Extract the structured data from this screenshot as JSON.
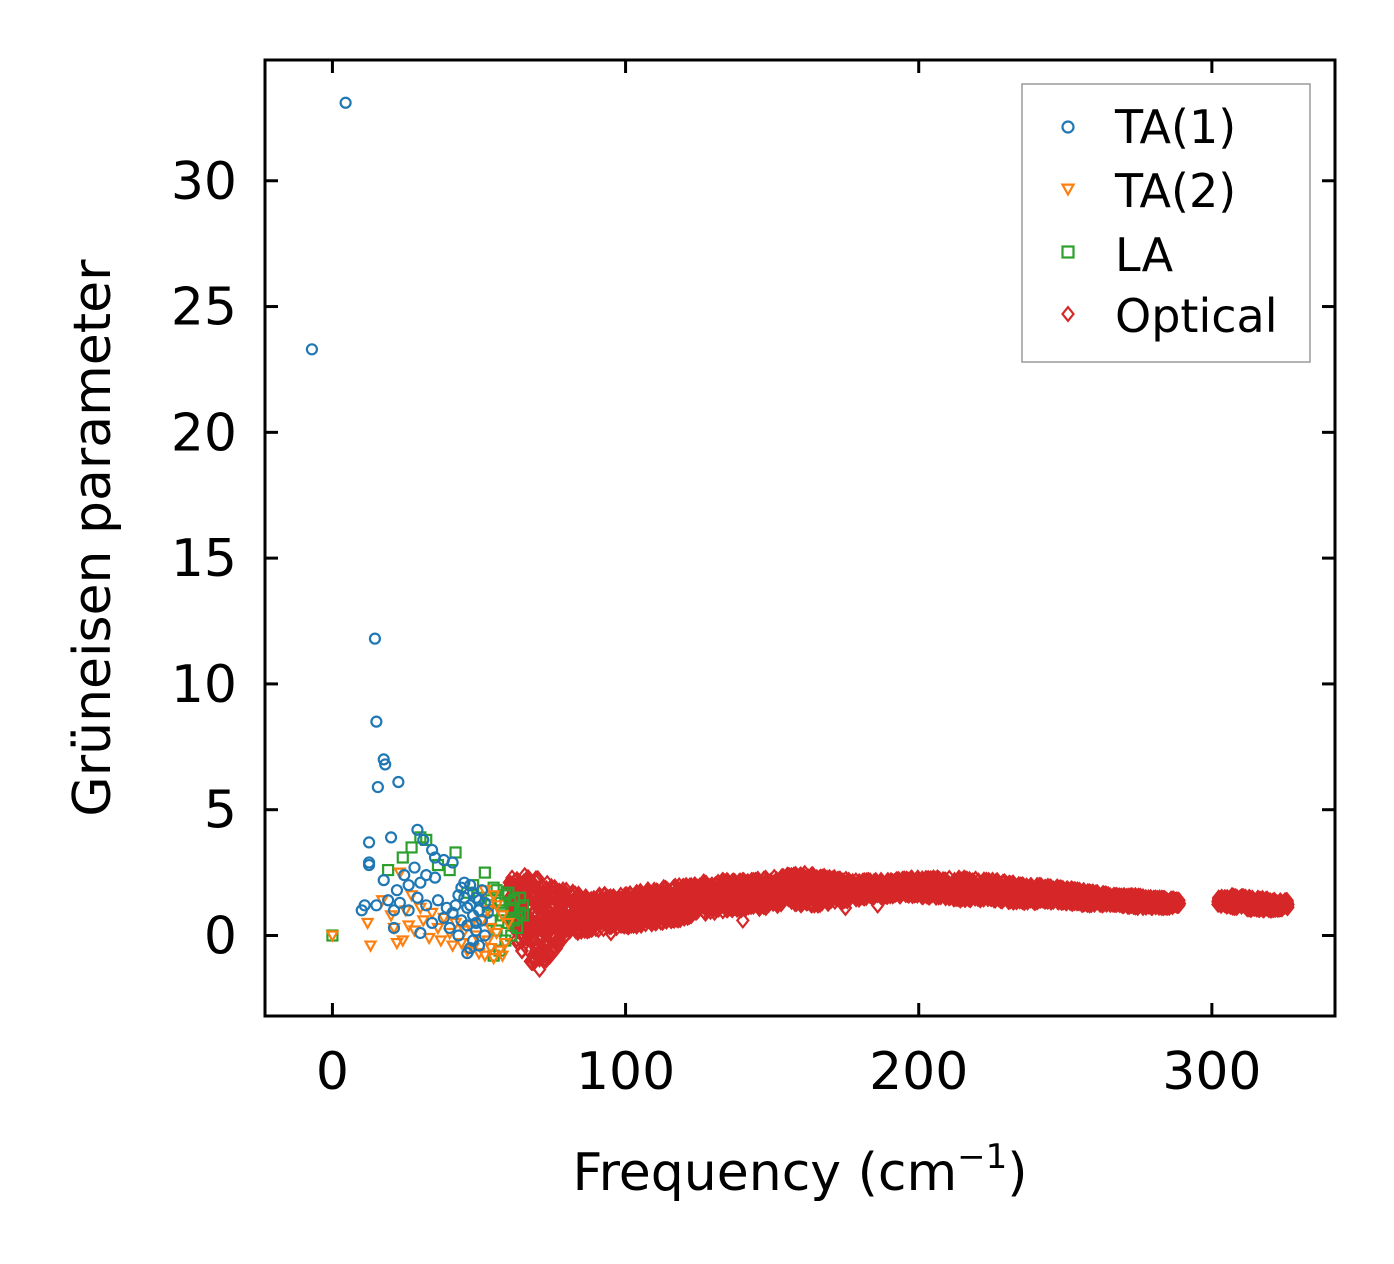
{
  "chart_data": {
    "type": "scatter",
    "title": "",
    "xlabel": "Frequency (cm−1)",
    "xlabel_main": "Frequency (cm",
    "xlabel_sup": "−1",
    "xlabel_close": ")",
    "ylabel": "Grüneisen parameter",
    "xlim": [
      -23,
      342
    ],
    "ylim": [
      -3.2,
      34.8
    ],
    "xticks": [
      0,
      100,
      200,
      300
    ],
    "yticks": [
      0,
      5,
      10,
      15,
      20,
      25,
      30
    ],
    "xtick_labels": [
      "0",
      "100",
      "200",
      "300"
    ],
    "ytick_labels": [
      "0",
      "5",
      "10",
      "15",
      "20",
      "25",
      "30"
    ],
    "legend_position": "top-right",
    "grid": false,
    "series": [
      {
        "name": "TA(1)",
        "marker": "circle",
        "color": "#1f77b4",
        "points": [
          [
            -7,
            23.3
          ],
          [
            4.5,
            33.1
          ],
          [
            14.5,
            11.8
          ],
          [
            15,
            8.5
          ],
          [
            17.5,
            7.0
          ],
          [
            18,
            6.8
          ],
          [
            15.5,
            5.9
          ],
          [
            22.5,
            6.1
          ],
          [
            20,
            3.9
          ],
          [
            12.5,
            3.7
          ],
          [
            12.5,
            2.9
          ],
          [
            12.5,
            2.8
          ],
          [
            29,
            4.2
          ],
          [
            31,
            3.8
          ],
          [
            34,
            3.4
          ],
          [
            35,
            3.1
          ],
          [
            38,
            3.0
          ],
          [
            41,
            2.9
          ],
          [
            17.5,
            2.2
          ],
          [
            24.5,
            2.4
          ],
          [
            28,
            2.7
          ],
          [
            32,
            2.4
          ],
          [
            22,
            1.8
          ],
          [
            26,
            2.0
          ],
          [
            30,
            2.1
          ],
          [
            35,
            2.3
          ],
          [
            10,
            1.0
          ],
          [
            11,
            1.2
          ],
          [
            15,
            1.2
          ],
          [
            19,
            1.4
          ],
          [
            21,
            1.0
          ],
          [
            23,
            1.3
          ],
          [
            26,
            1.0
          ],
          [
            29,
            1.5
          ],
          [
            32,
            1.2
          ],
          [
            36,
            1.4
          ],
          [
            39,
            1.1
          ],
          [
            21,
            0.3
          ],
          [
            30,
            0.1
          ],
          [
            34,
            0.5
          ],
          [
            38,
            0.7
          ],
          [
            41,
            0.9
          ],
          [
            43,
            1.6
          ],
          [
            44,
            1.9
          ],
          [
            45,
            2.1
          ],
          [
            46,
            0.4
          ],
          [
            47,
            1.2
          ],
          [
            48,
            0.8
          ],
          [
            49,
            1.5
          ],
          [
            50,
            1.0
          ],
          [
            51,
            0.6
          ],
          [
            52,
            1.3
          ],
          [
            47,
            -0.5
          ],
          [
            48,
            -0.2
          ],
          [
            46,
            -0.7
          ],
          [
            49,
            0.2
          ],
          [
            50,
            -0.4
          ],
          [
            51,
            1.8
          ],
          [
            52,
            0.0
          ],
          [
            53,
            0.9
          ],
          [
            44,
            0.6
          ],
          [
            42,
            1.2
          ],
          [
            40,
            0.3
          ],
          [
            45,
            1.5
          ],
          [
            47,
            2.0
          ],
          [
            43,
            0.0
          ],
          [
            48,
            1.7
          ],
          [
            50,
            1.4
          ],
          [
            46,
            1.1
          ],
          [
            49,
            0.5
          ]
        ]
      },
      {
        "name": "TA(2)",
        "marker": "triangle-down",
        "color": "#ff7f0e",
        "points": [
          [
            0,
            0.0
          ],
          [
            12,
            0.5
          ],
          [
            13,
            -0.4
          ],
          [
            17,
            1.4
          ],
          [
            20,
            0.8
          ],
          [
            21,
            0.3
          ],
          [
            22,
            -0.3
          ],
          [
            23,
            2.5
          ],
          [
            24,
            -0.2
          ],
          [
            25,
            1.0
          ],
          [
            26,
            0.4
          ],
          [
            27,
            1.6
          ],
          [
            28,
            0.2
          ],
          [
            30,
            1.1
          ],
          [
            31,
            0.6
          ],
          [
            33,
            -0.1
          ],
          [
            34,
            0.9
          ],
          [
            36,
            0.3
          ],
          [
            37,
            -0.2
          ],
          [
            38,
            0.7
          ],
          [
            40,
            0.1
          ],
          [
            41,
            -0.4
          ],
          [
            42,
            0.5
          ],
          [
            44,
            -0.3
          ],
          [
            45,
            0.2
          ],
          [
            46,
            -0.6
          ],
          [
            47,
            0.4
          ],
          [
            48,
            -0.5
          ],
          [
            49,
            0.0
          ],
          [
            50,
            -0.7
          ],
          [
            51,
            0.6
          ],
          [
            52,
            -0.8
          ],
          [
            53,
            -0.2
          ],
          [
            54,
            0.3
          ],
          [
            55,
            -0.9
          ],
          [
            56,
            1.2
          ],
          [
            57,
            -0.6
          ],
          [
            58,
            0.8
          ],
          [
            59,
            -0.3
          ],
          [
            60,
            0.5
          ],
          [
            55,
            1.6
          ],
          [
            53,
            1.0
          ],
          [
            52,
            1.8
          ],
          [
            56,
            0.1
          ],
          [
            58,
            -0.8
          ],
          [
            54,
            -0.5
          ]
        ]
      },
      {
        "name": "LA",
        "marker": "square",
        "color": "#2ca02c",
        "points": [
          [
            0,
            0.0
          ],
          [
            19,
            2.6
          ],
          [
            24,
            3.1
          ],
          [
            27,
            3.5
          ],
          [
            30,
            3.9
          ],
          [
            32,
            3.8
          ],
          [
            36,
            2.8
          ],
          [
            40,
            2.6
          ],
          [
            42,
            3.3
          ],
          [
            46,
            1.7
          ],
          [
            48,
            2.0
          ],
          [
            50,
            1.5
          ],
          [
            52,
            2.5
          ],
          [
            53,
            1.2
          ],
          [
            54,
            0.6
          ],
          [
            55,
            1.9
          ],
          [
            56,
            0.2
          ],
          [
            57,
            1.3
          ],
          [
            58,
            0.8
          ],
          [
            59,
            1.6
          ],
          [
            60,
            0.5
          ],
          [
            61,
            1.1
          ],
          [
            62,
            1.4
          ],
          [
            63,
            0.3
          ],
          [
            64,
            0.9
          ],
          [
            65,
            1.2
          ],
          [
            55,
            -0.8
          ],
          [
            57,
            -0.6
          ],
          [
            59,
            -0.2
          ],
          [
            61,
            0.0
          ],
          [
            63,
            0.7
          ],
          [
            56,
            1.8
          ],
          [
            58,
            1.0
          ],
          [
            60,
            1.7
          ],
          [
            62,
            0.6
          ],
          [
            54,
            1.4
          ],
          [
            65,
            0.8
          ],
          [
            64,
            1.5
          ]
        ]
      },
      {
        "name": "Optical",
        "marker": "diamond",
        "color": "#d62728",
        "envelope": [
          [
            60,
            0.8,
            2.3
          ],
          [
            62,
            0.0,
            2.3
          ],
          [
            64,
            -0.5,
            2.4
          ],
          [
            66,
            -0.9,
            2.4
          ],
          [
            68,
            -1.2,
            2.3
          ],
          [
            70,
            -1.4,
            2.3
          ],
          [
            72,
            -1.3,
            2.2
          ],
          [
            74,
            -1.0,
            2.1
          ],
          [
            76,
            -0.6,
            2.0
          ],
          [
            78,
            -0.2,
            1.9
          ],
          [
            80,
            0.0,
            1.8
          ],
          [
            84,
            0.1,
            1.7
          ],
          [
            88,
            0.2,
            1.6
          ],
          [
            92,
            0.2,
            1.7
          ],
          [
            96,
            0.3,
            1.6
          ],
          [
            100,
            0.3,
            1.7
          ],
          [
            106,
            0.4,
            1.8
          ],
          [
            112,
            0.5,
            1.9
          ],
          [
            118,
            0.6,
            2.0
          ],
          [
            124,
            0.8,
            2.1
          ],
          [
            130,
            0.9,
            2.2
          ],
          [
            136,
            1.0,
            2.2
          ],
          [
            142,
            1.0,
            2.2
          ],
          [
            148,
            1.1,
            2.3
          ],
          [
            154,
            1.2,
            2.4
          ],
          [
            160,
            1.2,
            2.5
          ],
          [
            166,
            1.2,
            2.4
          ],
          [
            172,
            1.3,
            2.3
          ],
          [
            178,
            1.4,
            2.2
          ],
          [
            184,
            1.5,
            2.2
          ],
          [
            190,
            1.5,
            2.2
          ],
          [
            196,
            1.6,
            2.3
          ],
          [
            202,
            1.5,
            2.3
          ],
          [
            208,
            1.5,
            2.3
          ],
          [
            214,
            1.4,
            2.3
          ],
          [
            220,
            1.4,
            2.3
          ],
          [
            226,
            1.4,
            2.2
          ],
          [
            232,
            1.3,
            2.1
          ],
          [
            238,
            1.3,
            2.0
          ],
          [
            244,
            1.3,
            2.0
          ],
          [
            250,
            1.3,
            1.9
          ],
          [
            256,
            1.2,
            1.8
          ],
          [
            262,
            1.2,
            1.7
          ],
          [
            268,
            1.2,
            1.6
          ],
          [
            274,
            1.1,
            1.6
          ],
          [
            280,
            1.1,
            1.5
          ],
          [
            286,
            1.1,
            1.5
          ],
          [
            289,
            1.2,
            1.4
          ],
          [
            302,
            1.2,
            1.5
          ],
          [
            306,
            1.1,
            1.6
          ],
          [
            310,
            1.1,
            1.6
          ],
          [
            314,
            1.0,
            1.5
          ],
          [
            318,
            1.0,
            1.5
          ],
          [
            322,
            1.0,
            1.4
          ],
          [
            326,
            1.1,
            1.4
          ]
        ],
        "outliers": [
          [
            175,
            1.1
          ],
          [
            186,
            1.2
          ],
          [
            178,
            2.0
          ],
          [
            140,
            0.6
          ],
          [
            95,
            0.1
          ]
        ]
      }
    ]
  }
}
